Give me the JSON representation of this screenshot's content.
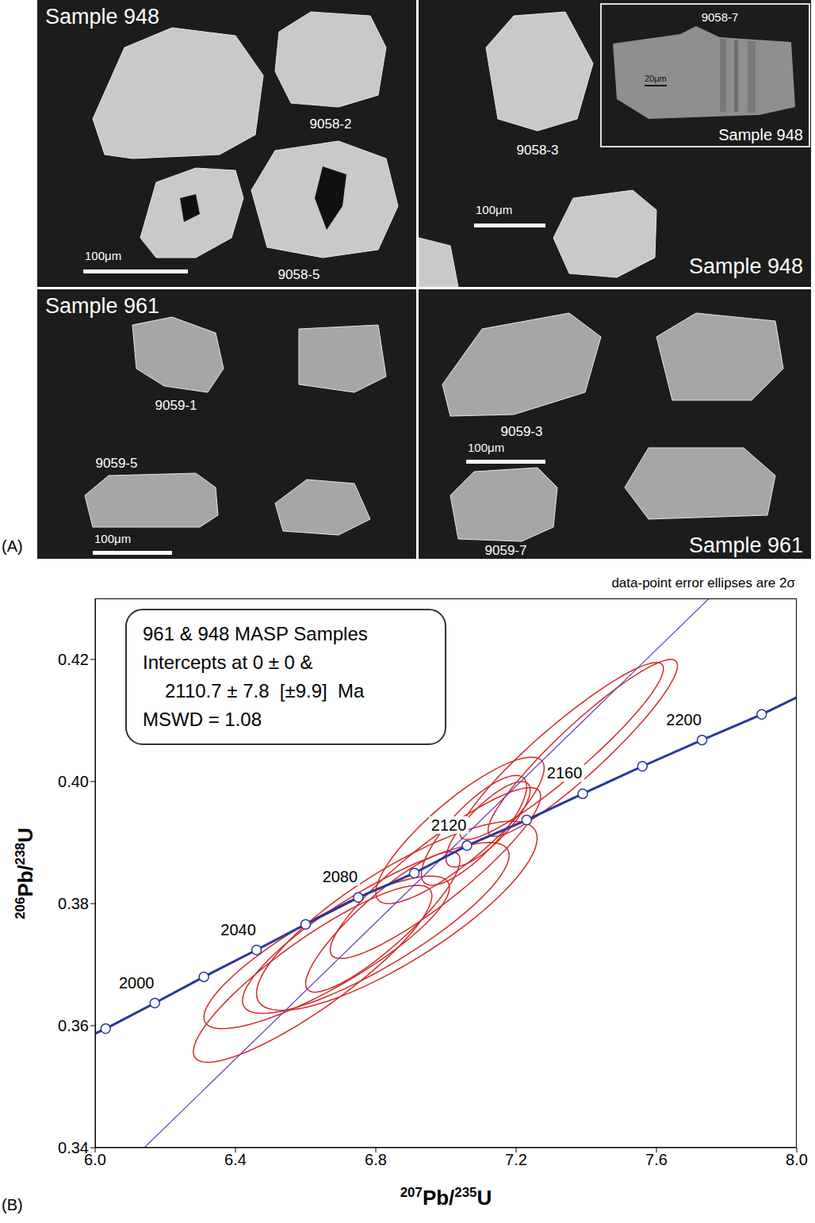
{
  "figure_a": {
    "letter": "(A)",
    "panels": [
      {
        "sample": "Sample 948",
        "grains": [
          "9058-2",
          "9058-5"
        ],
        "scale_bar": "100μm"
      },
      {
        "sample": "Sample 948",
        "grains": [
          "9058-3"
        ],
        "scale_bar": "100μm",
        "inset": {
          "grain": "9058-7",
          "sample": "Sample 948",
          "scale_bar": "20μm"
        }
      },
      {
        "sample": "Sample 961",
        "grains": [
          "9059-1",
          "9059-5"
        ],
        "scale_bar": "100μm"
      },
      {
        "sample": "Sample 961",
        "grains": [
          "9059-3",
          "9059-7"
        ],
        "scale_bar": "100μm"
      }
    ]
  },
  "chart_data": {
    "type": "scatter",
    "letter": "(B)",
    "xlabel": "207Pb/235U",
    "ylabel": "206Pb/238U",
    "note": "data-point error ellipses are 2σ",
    "annotation": [
      "961 & 948 MASP Samples",
      "Intercepts at 0 ± 0 &",
      "2110.7 ± 7.8  [±9.9]  Ma",
      "MSWD = 1.08"
    ],
    "xlim": [
      6,
      8
    ],
    "ylim": [
      0.34,
      0.43
    ],
    "xticks": [
      {
        "value": 6,
        "label": "6.0"
      },
      6.4,
      6.8,
      7.2,
      7.6,
      {
        "value": 8,
        "label": "8.0"
      }
    ],
    "yticks": [
      0.34,
      0.36,
      0.38,
      {
        "value": 0.4,
        "label": "0.40"
      },
      0.42
    ],
    "grid": false,
    "ellipses": {
      "color": "#d42a2a",
      "x": [
        6.62,
        6.66,
        6.8,
        6.82,
        6.86,
        6.97,
        7.08,
        7.04,
        7.33,
        7.39,
        7.12
      ],
      "y": [
        0.3685,
        0.372,
        0.376,
        0.377,
        0.378,
        0.385,
        0.392,
        0.392,
        0.405,
        0.4055,
        0.393
      ],
      "x_err": [
        0.34,
        0.35,
        0.38,
        0.22,
        0.4,
        0.3,
        0.15,
        0.24,
        0.29,
        0.27,
        0.12
      ],
      "y_err": [
        0.0145,
        0.0125,
        0.014,
        0.0115,
        0.0155,
        0.014,
        0.009,
        0.012,
        0.0145,
        0.0145,
        0.007
      ],
      "rho": [
        0.88,
        0.85,
        0.85,
        0.88,
        0.82,
        0.9,
        0.8,
        0.85,
        0.93,
        0.93,
        0.8
      ]
    },
    "concordia": {
      "color": "#26389a",
      "x": [
        6.0,
        6.03,
        6.17,
        6.31,
        6.46,
        6.6,
        6.75,
        6.91,
        7.06,
        7.23,
        7.39,
        7.56,
        7.73,
        7.9,
        8.0
      ],
      "y": [
        0.3587,
        0.3595,
        0.3637,
        0.368,
        0.3724,
        0.3766,
        0.381,
        0.385,
        0.3895,
        0.3937,
        0.398,
        0.4025,
        0.4068,
        0.411,
        0.4138
      ]
    },
    "age_marks": {
      "ages": [
        1980,
        2000,
        2020,
        2040,
        2060,
        2080,
        2100,
        2120,
        2140,
        2160,
        2180,
        2200,
        2220
      ],
      "x": [
        6.03,
        6.17,
        6.31,
        6.46,
        6.6,
        6.75,
        6.91,
        7.06,
        7.23,
        7.39,
        7.56,
        7.73,
        7.9
      ],
      "y": [
        0.3595,
        0.3637,
        0.368,
        0.3724,
        0.3766,
        0.381,
        0.385,
        0.3895,
        0.3937,
        0.398,
        0.4025,
        0.4068,
        0.411
      ]
    },
    "age_labels": [
      2000,
      2040,
      2080,
      2120,
      2160,
      2200
    ],
    "discordia": {
      "color": "#5c3fb5",
      "x": [
        6.14,
        7.75
      ],
      "y": [
        0.34,
        0.43
      ]
    }
  }
}
